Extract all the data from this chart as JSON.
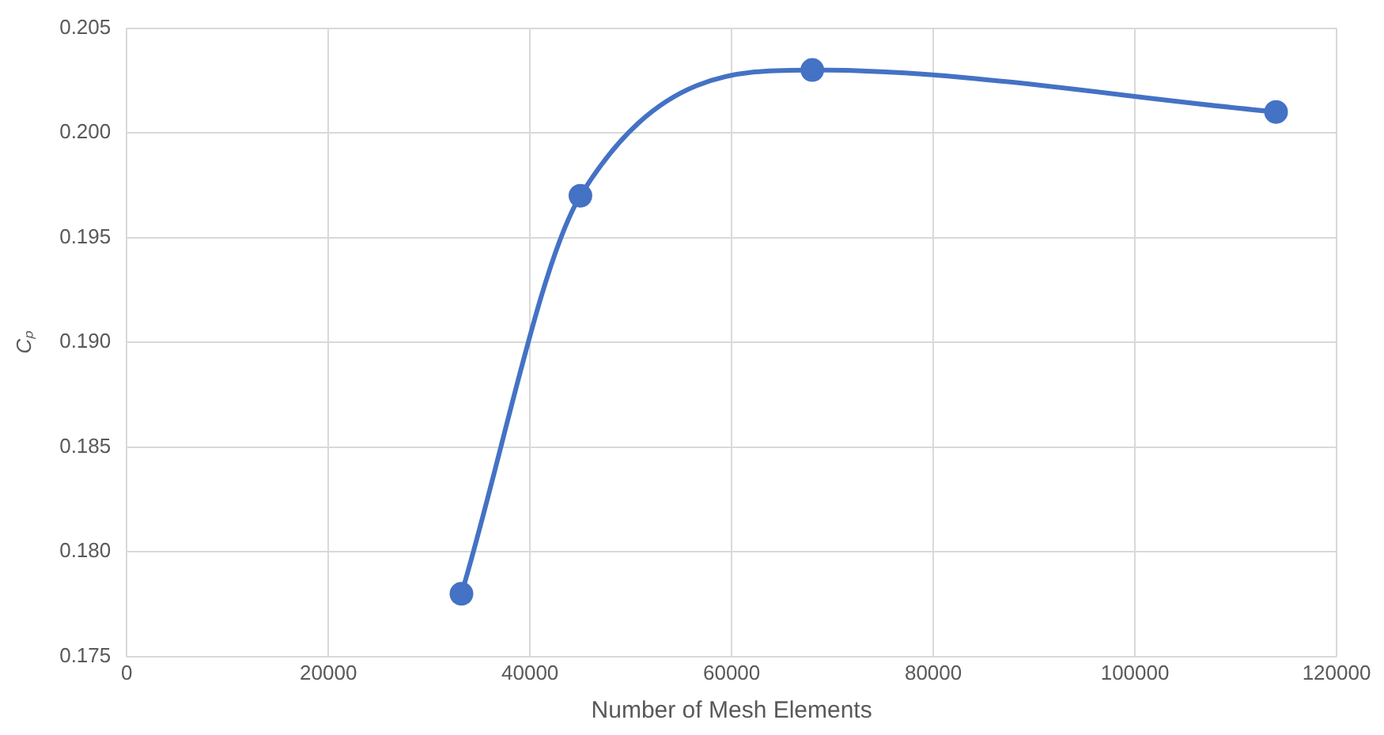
{
  "chart_data": {
    "type": "line",
    "xlabel": "Number of Mesh Elements",
    "ylabel": "Cₚ",
    "x": [
      33200,
      45000,
      68000,
      114000
    ],
    "series": [
      {
        "color": "#4472c4",
        "values": [
          0.178,
          0.197,
          0.203,
          0.201
        ]
      }
    ],
    "xlim": [
      0,
      120000
    ],
    "xticks": [
      0,
      20000,
      40000,
      60000,
      80000,
      100000,
      120000
    ],
    "ylim": [
      0.175,
      0.205
    ],
    "yticks": [
      {
        "value": 0.175,
        "label": "0.175"
      },
      {
        "value": 0.18,
        "label": "0.180"
      },
      {
        "value": 0.185,
        "label": "0.185"
      },
      {
        "value": 0.19,
        "label": "0.190"
      },
      {
        "value": 0.195,
        "label": "0.195"
      },
      {
        "value": 0.2,
        "label": "0.200"
      },
      {
        "value": 0.205,
        "label": "0.205"
      }
    ],
    "grid": true,
    "legend": false,
    "marker": "circle",
    "line_style": "solid"
  }
}
